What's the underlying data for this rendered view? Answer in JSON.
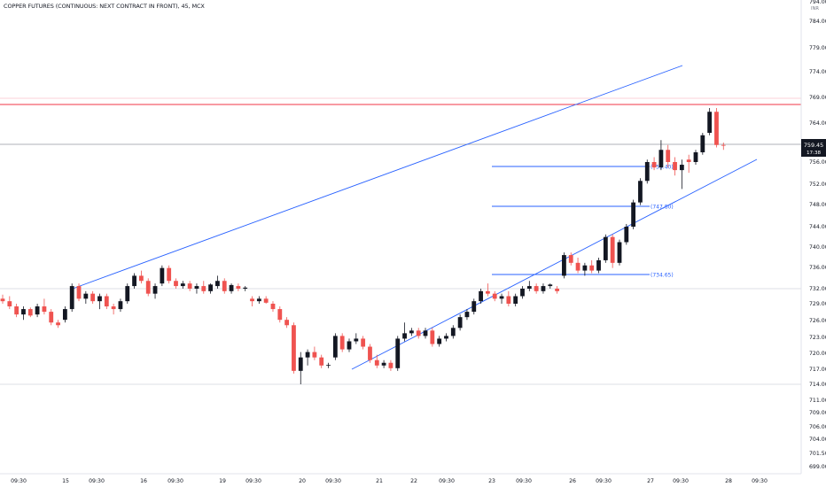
{
  "header": {
    "symbol_title": "COPPER FUTURES (CONTINUOUS: NEXT CONTRACT IN FRONT), 45, MCX",
    "currency_label": "INR"
  },
  "colors": {
    "up": "#131722",
    "down": "#ef5350",
    "trendline": "#2962ff",
    "horizontal_level": "#2962ff",
    "resistance_line": "#f23645",
    "grid_line": "#d1d4dc",
    "price_badge_bg": "#131722",
    "price_badge_text": "#ffffff"
  },
  "chart_data": {
    "type": "candlestick",
    "y_axis": {
      "ticks": [
        "784.00",
        "779.00",
        "774.00",
        "769.00",
        "764.00",
        "759.45",
        "756.00",
        "752.00",
        "748.00",
        "744.00",
        "740.00",
        "736.00",
        "732.00",
        "729.00",
        "726.00",
        "723.00",
        "720.00",
        "717.00",
        "714.00",
        "711.00",
        "709.00",
        "706.00",
        "704.00",
        "701.50",
        "699.00"
      ],
      "top_partial_label": "794.00",
      "ylim": [
        697,
        796
      ],
      "position": "right"
    },
    "x_axis": {
      "tick_labels": [
        "09:30",
        "15",
        "09:30",
        "16",
        "09:30",
        "19",
        "09:30",
        "20",
        "09:30",
        "21",
        "22",
        "09:30",
        "23",
        "09:30",
        "26",
        "09:30",
        "27",
        "09:30",
        "28",
        "09:30"
      ],
      "position": "bottom"
    },
    "last_price": "759.45",
    "last_price_timer": "17:38",
    "annotations": [
      {
        "kind": "horizontal_level",
        "label": "(755.40)",
        "value": 755.4
      },
      {
        "kind": "horizontal_level",
        "label": "(747.80)",
        "value": 747.8
      },
      {
        "kind": "horizontal_level",
        "label": "(734.65)",
        "value": 734.65
      },
      {
        "kind": "resistance_line",
        "value": 767.5
      },
      {
        "kind": "reference_line",
        "value": 732.0
      },
      {
        "kind": "reference_line",
        "value": 714.0
      },
      {
        "kind": "upper_trendline",
        "from_bar": 9,
        "from_value": 733.0,
        "to_bar": 102,
        "to_value": 774.8
      },
      {
        "kind": "lower_trendline",
        "from_bar": 46,
        "from_value": 716.5,
        "to_bar": 111,
        "to_value": 755.5
      }
    ],
    "ohlc": [
      [
        730.0,
        730.8,
        729.0,
        729.5
      ],
      [
        729.5,
        730.5,
        728.0,
        728.5
      ],
      [
        728.5,
        729.0,
        726.5,
        727.0
      ],
      [
        727.0,
        728.5,
        726.0,
        728.0
      ],
      [
        728.0,
        728.3,
        726.5,
        726.8
      ],
      [
        727.0,
        729.0,
        726.5,
        728.5
      ],
      [
        728.5,
        730.0,
        727.0,
        727.5
      ],
      [
        727.5,
        728.0,
        725.0,
        725.5
      ],
      [
        725.5,
        726.0,
        724.5,
        725.0
      ],
      [
        726.0,
        728.5,
        725.5,
        728.0
      ],
      [
        728.0,
        733.0,
        727.5,
        732.5
      ],
      [
        732.5,
        733.0,
        729.5,
        730.0
      ],
      [
        730.0,
        731.5,
        729.0,
        731.0
      ],
      [
        731.0,
        731.5,
        729.0,
        729.5
      ],
      [
        729.5,
        731.0,
        728.0,
        730.5
      ],
      [
        730.5,
        731.0,
        728.0,
        728.5
      ],
      [
        728.5,
        729.0,
        727.0,
        728.0
      ],
      [
        728.0,
        730.0,
        727.5,
        729.5
      ],
      [
        729.5,
        733.0,
        729.0,
        732.5
      ],
      [
        732.5,
        735.0,
        732.0,
        734.5
      ],
      [
        734.5,
        735.5,
        733.0,
        733.5
      ],
      [
        733.5,
        734.0,
        730.5,
        731.0
      ],
      [
        731.0,
        733.0,
        730.0,
        732.5
      ],
      [
        733.0,
        736.5,
        732.5,
        736.0
      ],
      [
        736.0,
        736.5,
        733.0,
        733.5
      ],
      [
        733.5,
        734.0,
        732.0,
        732.5
      ],
      [
        732.5,
        733.5,
        732.0,
        733.0
      ],
      [
        733.0,
        733.5,
        731.5,
        732.0
      ],
      [
        732.0,
        733.0,
        731.0,
        732.5
      ],
      [
        732.5,
        733.5,
        731.0,
        731.5
      ],
      [
        731.5,
        733.0,
        731.0,
        732.8
      ],
      [
        732.5,
        734.5,
        732.0,
        733.5
      ],
      [
        733.5,
        734.0,
        731.0,
        731.5
      ],
      [
        731.5,
        733.0,
        731.0,
        732.7
      ],
      [
        732.5,
        733.0,
        731.5,
        732.0
      ],
      [
        732.0,
        732.5,
        731.5,
        732.2
      ],
      [
        730.0,
        730.5,
        728.5,
        729.5
      ],
      [
        729.5,
        730.5,
        729.0,
        730.0
      ],
      [
        730.0,
        730.5,
        729.0,
        729.2
      ],
      [
        729.0,
        729.5,
        727.5,
        728.0
      ],
      [
        728.0,
        728.5,
        725.5,
        726.0
      ],
      [
        726.0,
        726.5,
        724.5,
        725.0
      ],
      [
        725.0,
        725.5,
        716.0,
        716.5
      ],
      [
        716.5,
        720.0,
        714.0,
        719.0
      ],
      [
        719.0,
        720.5,
        717.5,
        720.0
      ],
      [
        720.0,
        721.0,
        718.5,
        719.0
      ],
      [
        719.0,
        719.5,
        717.0,
        717.5
      ],
      [
        717.5,
        718.0,
        717.0,
        717.6
      ],
      [
        719.0,
        723.5,
        718.5,
        723.0
      ],
      [
        723.0,
        723.5,
        720.0,
        720.5
      ],
      [
        720.5,
        722.5,
        720.0,
        722.0
      ],
      [
        722.0,
        723.5,
        721.5,
        722.5
      ],
      [
        722.5,
        723.0,
        720.5,
        721.0
      ],
      [
        721.0,
        721.5,
        718.0,
        718.5
      ],
      [
        718.5,
        719.5,
        717.0,
        717.5
      ],
      [
        717.5,
        718.5,
        717.0,
        718.0
      ],
      [
        718.0,
        718.5,
        716.5,
        717.0
      ],
      [
        717.0,
        723.0,
        716.5,
        722.5
      ],
      [
        722.5,
        725.5,
        722.0,
        723.5
      ],
      [
        723.5,
        724.5,
        723.0,
        724.0
      ],
      [
        724.0,
        724.5,
        722.5,
        723.0
      ],
      [
        723.0,
        724.5,
        722.5,
        724.0
      ],
      [
        724.0,
        724.5,
        721.0,
        721.5
      ],
      [
        721.5,
        723.0,
        721.0,
        722.5
      ],
      [
        722.5,
        723.5,
        722.0,
        723.0
      ],
      [
        723.0,
        725.0,
        722.5,
        724.5
      ],
      [
        724.5,
        727.0,
        724.0,
        726.5
      ],
      [
        726.5,
        728.0,
        726.0,
        727.5
      ],
      [
        727.5,
        730.0,
        727.0,
        729.5
      ],
      [
        729.5,
        732.0,
        729.0,
        731.5
      ],
      [
        731.5,
        733.0,
        730.5,
        731.0
      ],
      [
        731.0,
        731.5,
        729.5,
        730.0
      ],
      [
        730.0,
        731.0,
        729.0,
        730.5
      ],
      [
        730.5,
        731.5,
        728.5,
        729.0
      ],
      [
        729.0,
        731.0,
        728.5,
        730.5
      ],
      [
        730.5,
        732.5,
        730.0,
        732.0
      ],
      [
        732.0,
        733.5,
        731.5,
        732.5
      ],
      [
        732.5,
        733.0,
        731.0,
        731.5
      ],
      [
        731.5,
        733.0,
        731.0,
        732.5
      ],
      [
        732.5,
        733.0,
        732.0,
        732.8
      ],
      [
        732.0,
        732.5,
        731.0,
        731.5
      ],
      [
        734.5,
        739.0,
        734.0,
        738.5
      ],
      [
        738.5,
        739.0,
        736.5,
        737.0
      ],
      [
        737.0,
        738.0,
        735.0,
        735.5
      ],
      [
        735.5,
        737.0,
        734.5,
        736.5
      ],
      [
        736.5,
        737.5,
        735.0,
        735.5
      ],
      [
        735.5,
        738.0,
        735.0,
        737.5
      ],
      [
        737.5,
        742.5,
        737.0,
        742.0
      ],
      [
        742.0,
        742.5,
        736.0,
        737.0
      ],
      [
        737.0,
        741.5,
        736.5,
        741.0
      ],
      [
        741.0,
        744.5,
        740.5,
        744.0
      ],
      [
        744.0,
        749.0,
        743.5,
        748.5
      ],
      [
        748.5,
        753.0,
        748.0,
        752.5
      ],
      [
        752.5,
        756.5,
        752.0,
        756.0
      ],
      [
        756.0,
        757.0,
        754.5,
        755.0
      ],
      [
        755.0,
        760.5,
        754.5,
        758.5
      ],
      [
        758.5,
        759.5,
        755.0,
        756.0
      ],
      [
        756.0,
        757.0,
        753.5,
        754.5
      ],
      [
        754.5,
        756.5,
        751.0,
        755.5
      ],
      [
        756.5,
        757.5,
        754.0,
        756.0
      ],
      [
        756.0,
        758.5,
        755.5,
        758.0
      ],
      [
        758.0,
        762.0,
        757.5,
        761.5
      ],
      [
        762.0,
        766.0,
        761.5,
        765.5
      ],
      [
        765.5,
        766.0,
        759.0,
        759.5
      ],
      [
        759.5,
        760.0,
        758.5,
        759.45
      ]
    ]
  }
}
